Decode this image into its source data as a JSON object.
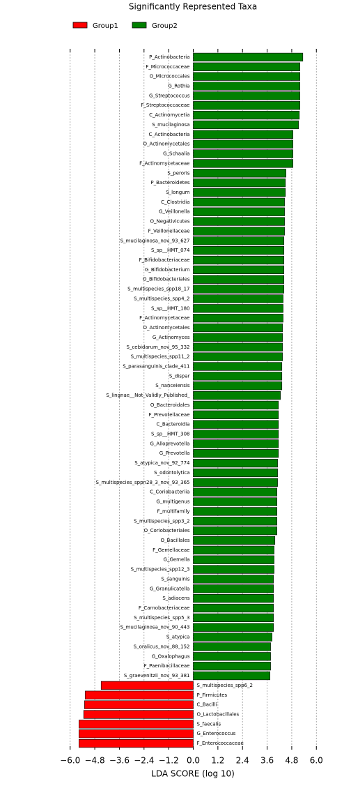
{
  "chart_data": {
    "type": "bar",
    "orientation": "horizontal",
    "title": "Significantly Represented Taxa",
    "x_label": "LDA SCORE (log 10)",
    "categories": [
      "P_Actinobacteria",
      "F_Micrococcaceae",
      "O_Micrococcales",
      "G_Rothia",
      "G_Streptococcus",
      "F_Streptococcaceae",
      "C_Actinomycetia",
      "S_mucilaginosa",
      "C_Actinobacteria",
      "O_Actinomycetales",
      "G_Schaalia",
      "F_Actinomycetaceae",
      "S_peroris",
      "P_Bacteroidetes",
      "S_longum",
      "C_Clostridia",
      "G_Veillonella",
      "O_Negativicutes",
      "F_Veillonellaceae",
      "S_mucilaginosa_nov_93_627",
      "S_sp__HMT_074",
      "F_Bifidobacteriaceae",
      "G_Bifidobacterium",
      "O_Bifidobacteriales",
      "S_multispecies_spp18_17",
      "S_multispecies_spp4_2",
      "S_sp__HMT_180",
      "F_Actinomycetaceae",
      "O_Actinomycetales",
      "G_Actinomyces",
      "S_cebidarum_nov_95_332",
      "S_multispecies_spp11_2",
      "S_parasanguinis_clade_411",
      "S_dispar",
      "S_nanceiensis",
      "S_lingnae__Not_Validly_Published_",
      "O_Bacteroidales",
      "F_Prevotellaceae",
      "C_Bacteroidia",
      "S_sp__HMT_308",
      "G_Alloprevotella",
      "G_Prevotella",
      "S_atypica_nov_92_774",
      "S_odontolytica",
      "S_multispecies_sppn28_3_nov_93_365",
      "C_Coriobacteriia",
      "G_multigenus",
      "F_multifamily",
      "S_multispecies_spp3_2",
      "O_Coriobacteriales",
      "O_Bacillales",
      "F_Gemellaceae",
      "G_Gemella",
      "S_multispecies_spp12_3",
      "S_sanguinis",
      "G_Granulicatella",
      "S_adiacens",
      "F_Carnobacteriaceae",
      "S_multispecies_spp5_3",
      "S_mucilaginosa_nov_90_443",
      "S_atypica",
      "S_oralicus_nov_88_152",
      "G_Oxalophagus",
      "F_Paenibacillaceae",
      "S_graevenitzii_nov_93_381",
      "S_multispecies_spp6_2",
      "P_Firmicutes",
      "C_Bacilli",
      "O_Lactobacillales",
      "S_faecalis",
      "G_Enterococcus",
      "F_Enterococcaceae"
    ],
    "series": [
      {
        "name": "Group1",
        "color": "#ff0000",
        "values": [
          null,
          null,
          null,
          null,
          null,
          null,
          null,
          null,
          null,
          null,
          null,
          null,
          null,
          null,
          null,
          null,
          null,
          null,
          null,
          null,
          null,
          null,
          null,
          null,
          null,
          null,
          null,
          null,
          null,
          null,
          null,
          null,
          null,
          null,
          null,
          null,
          null,
          null,
          null,
          null,
          null,
          null,
          null,
          null,
          null,
          null,
          null,
          null,
          null,
          null,
          null,
          null,
          null,
          null,
          null,
          null,
          null,
          null,
          null,
          null,
          null,
          null,
          null,
          null,
          null,
          -4.49,
          -5.27,
          -5.3,
          -5.34,
          -5.57,
          -5.57,
          -5.57
        ]
      },
      {
        "name": "Group2",
        "color": "#008000",
        "values": [
          5.34,
          5.2,
          5.2,
          5.2,
          5.2,
          5.2,
          5.17,
          5.13,
          4.86,
          4.86,
          4.86,
          4.86,
          4.52,
          4.49,
          4.49,
          4.45,
          4.45,
          4.45,
          4.45,
          4.42,
          4.42,
          4.42,
          4.42,
          4.42,
          4.42,
          4.38,
          4.38,
          4.38,
          4.35,
          4.35,
          4.35,
          4.35,
          4.32,
          4.32,
          4.32,
          4.25,
          4.15,
          4.15,
          4.15,
          4.15,
          4.15,
          4.15,
          4.11,
          4.11,
          4.11,
          4.08,
          4.08,
          4.08,
          4.08,
          4.08,
          3.98,
          3.94,
          3.94,
          3.94,
          3.91,
          3.91,
          3.91,
          3.91,
          3.91,
          3.91,
          3.84,
          3.77,
          3.77,
          3.77,
          3.74,
          null,
          null,
          null,
          null,
          null,
          null,
          null
        ]
      }
    ],
    "xlim": [
      -6.5,
      6.5
    ],
    "xticks": [
      {
        "value": -6,
        "label": "−6.0"
      },
      {
        "value": -4.8,
        "label": "−4.8"
      },
      {
        "value": -3.6,
        "label": "−3.6"
      },
      {
        "value": -2.4,
        "label": "−2.4"
      },
      {
        "value": -1.2,
        "label": "−1.2"
      },
      {
        "value": 0,
        "label": "0.0"
      },
      {
        "value": 1.2,
        "label": "1.2"
      },
      {
        "value": 2.4,
        "label": "2.4"
      },
      {
        "value": 3.6,
        "label": "3.6"
      },
      {
        "value": 4.8,
        "label": "4.8"
      },
      {
        "value": 6,
        "label": "6.0"
      }
    ],
    "grid": true
  }
}
